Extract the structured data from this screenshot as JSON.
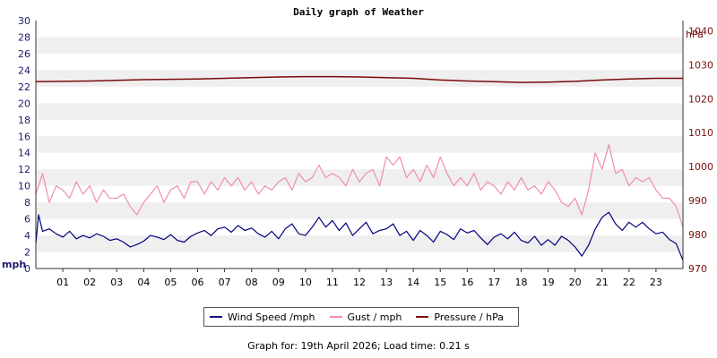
{
  "chart_data": {
    "type": "line",
    "title": "Daily graph of Weather",
    "left_unit": "mph",
    "right_unit": "hPa",
    "left_ylim": [
      0,
      30
    ],
    "left_ticks": [
      0,
      2,
      4,
      6,
      8,
      10,
      12,
      14,
      16,
      18,
      20,
      22,
      24,
      26,
      28,
      30
    ],
    "right_ylim": [
      970,
      1043
    ],
    "right_ticks": [
      970,
      980,
      990,
      1000,
      1010,
      1020,
      1030,
      1040
    ],
    "x_ticks": [
      "01",
      "02",
      "03",
      "04",
      "05",
      "06",
      "07",
      "08",
      "09",
      "10",
      "11",
      "12",
      "13",
      "14",
      "15",
      "16",
      "17",
      "18",
      "19",
      "20",
      "21",
      "22",
      "23"
    ],
    "xlim": [
      0,
      24
    ],
    "grid": "horizontal bands",
    "legend_position": "bottom",
    "series": [
      {
        "name": "Wind Speed /mph",
        "axis": "left",
        "color": "#000080",
        "x": [
          0,
          0.1,
          0.25,
          0.5,
          0.75,
          1,
          1.25,
          1.5,
          1.75,
          2,
          2.25,
          2.5,
          2.75,
          3,
          3.25,
          3.5,
          3.75,
          4,
          4.25,
          4.5,
          4.75,
          5,
          5.25,
          5.5,
          5.75,
          6,
          6.25,
          6.5,
          6.75,
          7,
          7.25,
          7.5,
          7.75,
          8,
          8.25,
          8.5,
          8.75,
          9,
          9.25,
          9.5,
          9.75,
          10,
          10.25,
          10.5,
          10.75,
          11,
          11.25,
          11.5,
          11.75,
          12,
          12.25,
          12.5,
          12.75,
          13,
          13.25,
          13.5,
          13.75,
          14,
          14.25,
          14.5,
          14.75,
          15,
          15.25,
          15.5,
          15.75,
          16,
          16.25,
          16.5,
          16.75,
          17,
          17.25,
          17.5,
          17.75,
          18,
          18.25,
          18.5,
          18.75,
          19,
          19.25,
          19.5,
          19.75,
          20,
          20.25,
          20.5,
          20.75,
          21,
          21.25,
          21.5,
          21.75,
          22,
          22.25,
          22.5,
          22.75,
          23,
          23.25,
          23.5,
          23.75,
          24
        ],
        "values": [
          3.0,
          6.5,
          4.5,
          4.8,
          4.2,
          3.8,
          4.5,
          3.6,
          4.0,
          3.7,
          4.2,
          3.9,
          3.4,
          3.6,
          3.2,
          2.6,
          2.9,
          3.3,
          4.0,
          3.8,
          3.5,
          4.1,
          3.4,
          3.2,
          3.9,
          4.3,
          4.6,
          4.0,
          4.8,
          5.0,
          4.4,
          5.2,
          4.6,
          4.9,
          4.2,
          3.8,
          4.5,
          3.6,
          4.8,
          5.4,
          4.2,
          4.0,
          5.0,
          6.2,
          5.0,
          5.8,
          4.6,
          5.5,
          4.0,
          4.8,
          5.6,
          4.2,
          4.6,
          4.8,
          5.4,
          4.0,
          4.5,
          3.4,
          4.6,
          4.0,
          3.2,
          4.5,
          4.1,
          3.5,
          4.8,
          4.3,
          4.6,
          3.7,
          2.9,
          3.8,
          4.2,
          3.6,
          4.4,
          3.4,
          3.1,
          3.9,
          2.8,
          3.5,
          2.8,
          3.9,
          3.4,
          2.6,
          1.5,
          2.8,
          4.8,
          6.2,
          6.8,
          5.4,
          4.6,
          5.6,
          5.0,
          5.6,
          4.8,
          4.2,
          4.4,
          3.5,
          3.0,
          1.0
        ]
      },
      {
        "name": "Gust / mph",
        "axis": "left",
        "color": "#f08cb0",
        "x": [
          0,
          0.25,
          0.5,
          0.75,
          1,
          1.25,
          1.5,
          1.75,
          2,
          2.25,
          2.5,
          2.75,
          3,
          3.25,
          3.5,
          3.75,
          4,
          4.25,
          4.5,
          4.75,
          5,
          5.25,
          5.5,
          5.75,
          6,
          6.25,
          6.5,
          6.75,
          7,
          7.25,
          7.5,
          7.75,
          8,
          8.25,
          8.5,
          8.75,
          9,
          9.25,
          9.5,
          9.75,
          10,
          10.25,
          10.5,
          10.75,
          11,
          11.25,
          11.5,
          11.75,
          12,
          12.25,
          12.5,
          12.75,
          13,
          13.25,
          13.5,
          13.75,
          14,
          14.25,
          14.5,
          14.75,
          15,
          15.25,
          15.5,
          15.75,
          16,
          16.25,
          16.5,
          16.75,
          17,
          17.25,
          17.5,
          17.75,
          18,
          18.25,
          18.5,
          18.75,
          19,
          19.25,
          19.5,
          19.75,
          20,
          20.25,
          20.5,
          20.75,
          21,
          21.25,
          21.5,
          21.75,
          22,
          22.25,
          22.5,
          22.75,
          23,
          23.25,
          23.5,
          23.75,
          24
        ],
        "values": [
          9.0,
          11.5,
          8.0,
          10.0,
          9.5,
          8.5,
          10.5,
          9.0,
          10.0,
          8.0,
          9.5,
          8.5,
          8.5,
          9.0,
          7.5,
          6.5,
          8.0,
          9.0,
          10.0,
          8.0,
          9.5,
          10.0,
          8.5,
          10.5,
          10.5,
          9.0,
          10.5,
          9.5,
          11.0,
          10.0,
          11.0,
          9.5,
          10.5,
          9.0,
          10.0,
          9.5,
          10.5,
          11.0,
          9.5,
          11.5,
          10.5,
          11.0,
          12.5,
          11.0,
          11.5,
          11.0,
          10.0,
          12.0,
          10.5,
          11.5,
          12.0,
          10.0,
          13.5,
          12.5,
          13.5,
          11.0,
          12.0,
          10.5,
          12.5,
          11.0,
          13.5,
          11.5,
          10.0,
          11.0,
          10.0,
          11.5,
          9.5,
          10.5,
          10.0,
          9.0,
          10.5,
          9.5,
          11.0,
          9.5,
          10.0,
          9.0,
          10.5,
          9.5,
          8.0,
          7.5,
          8.5,
          6.5,
          9.5,
          14.0,
          12.0,
          15.0,
          11.5,
          12.0,
          10.0,
          11.0,
          10.5,
          11.0,
          9.5,
          8.5,
          8.5,
          7.5,
          5.0
        ]
      },
      {
        "name": "Pressure / hPa",
        "axis": "right",
        "color": "#7a0a0a",
        "x": [
          0,
          1,
          2,
          3,
          4,
          5,
          6,
          7,
          8,
          9,
          10,
          11,
          12,
          13,
          14,
          15,
          16,
          17,
          18,
          19,
          20,
          21,
          22,
          23,
          24
        ],
        "values": [
          1025.0,
          1025.1,
          1025.2,
          1025.4,
          1025.6,
          1025.7,
          1025.8,
          1026.0,
          1026.2,
          1026.4,
          1026.5,
          1026.5,
          1026.4,
          1026.2,
          1026.0,
          1025.5,
          1025.2,
          1025.0,
          1024.8,
          1024.9,
          1025.1,
          1025.5,
          1025.8,
          1026.0,
          1026.0
        ]
      }
    ]
  },
  "footer_text": "Graph for: 19th April 2026; Load time: 0.21 s"
}
